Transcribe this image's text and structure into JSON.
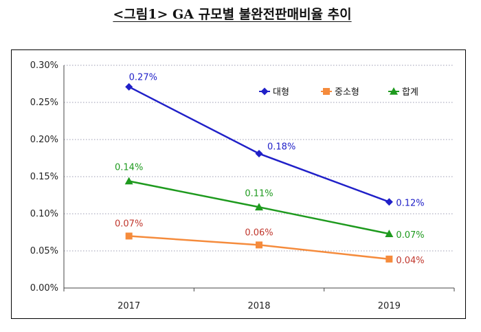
{
  "title": "<그림1> GA 규모별 불완전판매비율 추이",
  "chart_data": {
    "type": "line",
    "title": "<그림1> GA 규모별 불완전판매비율 추이",
    "xlabel": "",
    "ylabel": "",
    "categories": [
      "2017",
      "2018",
      "2019"
    ],
    "ylim": [
      0,
      0.3
    ],
    "yticks": [
      "0.00%",
      "0.05%",
      "0.10%",
      "0.15%",
      "0.20%",
      "0.25%",
      "0.30%"
    ],
    "grid": true,
    "legend_position": "top-right",
    "series": [
      {
        "name": "대형",
        "color": "#2020c8",
        "marker": "diamond",
        "values": [
          0.271,
          0.181,
          0.116
        ],
        "labels": [
          "0.27%",
          "0.18%",
          "0.12%"
        ]
      },
      {
        "name": "중소형",
        "color": "#f58b3c",
        "marker": "square",
        "label_color": "#c0362c",
        "values": [
          0.07,
          0.058,
          0.039
        ],
        "labels": [
          "0.07%",
          "0.06%",
          "0.04%"
        ]
      },
      {
        "name": "합계",
        "color": "#1e9a1e",
        "marker": "triangle",
        "values": [
          0.144,
          0.109,
          0.073
        ],
        "labels": [
          "0.14%",
          "0.11%",
          "0.07%"
        ]
      }
    ]
  }
}
